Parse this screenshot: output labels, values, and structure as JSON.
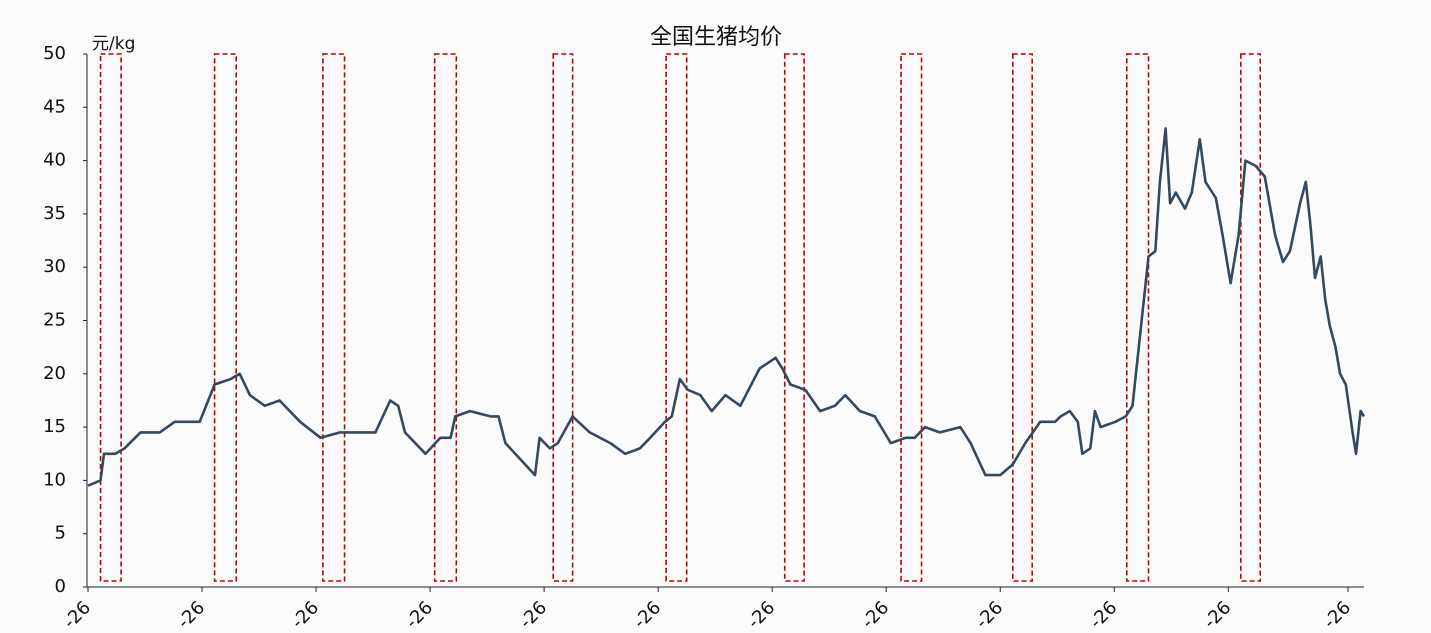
{
  "chart_data": {
    "type": "line",
    "title": "全国生猪均价",
    "y_unit": "元/kg",
    "xlim": [
      0,
      11.19
    ],
    "xticks": [
      {
        "value": 0,
        "label": "-26"
      },
      {
        "value": 1,
        "label": "-26"
      },
      {
        "value": 2,
        "label": "-26"
      },
      {
        "value": 3,
        "label": "-26"
      },
      {
        "value": 4,
        "label": "-26"
      },
      {
        "value": 5,
        "label": "-26"
      },
      {
        "value": 6,
        "label": "-26"
      },
      {
        "value": 7,
        "label": "-26"
      },
      {
        "value": 8,
        "label": "-26"
      },
      {
        "value": 9,
        "label": "-26"
      },
      {
        "value": 10,
        "label": "-26"
      },
      {
        "value": 11.05,
        "label": "-26"
      }
    ],
    "ylim": [
      0,
      50
    ],
    "yticks": [
      0,
      5,
      10,
      15,
      20,
      25,
      30,
      35,
      40,
      45,
      50
    ],
    "highlights": [
      [
        0.11,
        0.29
      ],
      [
        1.11,
        1.3
      ],
      [
        2.06,
        2.25
      ],
      [
        3.04,
        3.23
      ],
      [
        4.08,
        4.25
      ],
      [
        5.07,
        5.25
      ],
      [
        6.11,
        6.28
      ],
      [
        7.13,
        7.31
      ],
      [
        8.11,
        8.28
      ],
      [
        9.11,
        9.3
      ],
      [
        10.11,
        10.28
      ]
    ],
    "highlight_color": "#c00000",
    "x": [
      0,
      0.11,
      0.14,
      0.24,
      0.32,
      0.46,
      0.63,
      0.76,
      0.98,
      1.11,
      1.25,
      1.33,
      1.42,
      1.55,
      1.68,
      1.86,
      2.04,
      2.21,
      2.52,
      2.65,
      2.72,
      2.78,
      2.96,
      3.09,
      3.18,
      3.22,
      3.35,
      3.53,
      3.6,
      3.66,
      3.79,
      3.92,
      3.96,
      4.05,
      4.12,
      4.25,
      4.4,
      4.58,
      4.71,
      4.84,
      4.93,
      5.06,
      5.12,
      5.19,
      5.26,
      5.37,
      5.47,
      5.59,
      5.72,
      5.89,
      6.03,
      6.09,
      6.16,
      6.29,
      6.42,
      6.55,
      6.64,
      6.77,
      6.9,
      7.04,
      7.17,
      7.25,
      7.34,
      7.47,
      7.65,
      7.74,
      7.87,
      8.0,
      8.11,
      8.22,
      8.35,
      8.48,
      8.53,
      8.61,
      8.68,
      8.72,
      8.79,
      8.83,
      8.88,
      9.01,
      9.1,
      9.16,
      9.23,
      9.3,
      9.36,
      9.4,
      9.45,
      9.49,
      9.54,
      9.62,
      9.68,
      9.75,
      9.8,
      9.89,
      9.95,
      10.02,
      10.09,
      10.15,
      10.24,
      10.32,
      10.41,
      10.48,
      10.54,
      10.63,
      10.68,
      10.72,
      10.76,
      10.81,
      10.85,
      10.89,
      10.94,
      10.98,
      11.03,
      11.09,
      11.12,
      11.16,
      11.19
    ],
    "series": [
      {
        "name": "全国生猪均价",
        "color": "#34495e",
        "values": [
          9.5,
          10,
          12.5,
          12.5,
          13,
          14.5,
          14.5,
          15.5,
          15.5,
          19,
          19.5,
          20,
          18,
          17,
          17.5,
          15.5,
          14,
          14.5,
          14.5,
          17.5,
          17,
          14.5,
          12.5,
          14,
          14,
          16,
          16.5,
          16,
          16,
          13.5,
          12,
          10.5,
          14,
          13,
          13.5,
          16,
          14.5,
          13.5,
          12.5,
          13,
          14,
          15.5,
          16,
          19.5,
          18.5,
          18,
          16.5,
          18,
          17,
          20.5,
          21.5,
          20.5,
          19,
          18.5,
          16.5,
          17,
          18,
          16.5,
          16,
          13.5,
          14,
          14,
          15,
          14.5,
          15,
          13.5,
          10.5,
          10.5,
          11.5,
          13.5,
          15.5,
          15.5,
          16,
          16.5,
          15.5,
          12.5,
          13,
          16.5,
          15,
          15.5,
          16,
          17,
          24,
          31,
          31.5,
          38,
          43,
          36,
          37,
          35.5,
          37,
          42,
          38,
          36.5,
          33,
          28.5,
          33,
          40,
          39.5,
          38.5,
          33,
          30.5,
          31.5,
          36,
          38,
          34,
          29,
          31,
          27,
          24.5,
          22.5,
          20,
          19,
          14.5,
          12.5,
          16.5,
          16
        ]
      }
    ]
  }
}
